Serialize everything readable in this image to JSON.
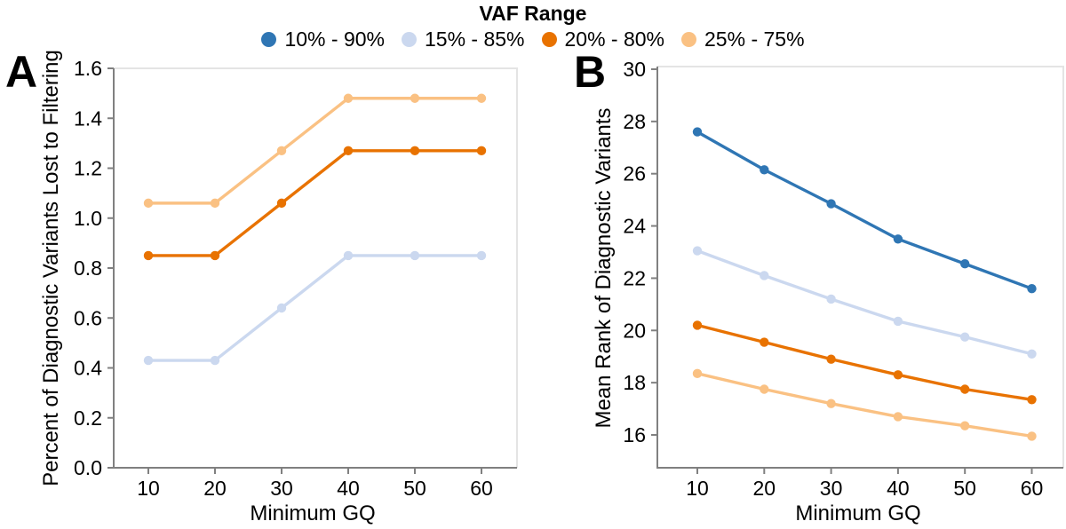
{
  "legend": {
    "title": "VAF Range",
    "position": "top",
    "items": [
      {
        "label": "10% - 90%",
        "color": "#2f76b4"
      },
      {
        "label": "15% - 85%",
        "color": "#cbd8ef"
      },
      {
        "label": "20% - 80%",
        "color": "#e87200"
      },
      {
        "label": "25% - 75%",
        "color": "#fac183"
      }
    ]
  },
  "chart_data": [
    {
      "type": "line",
      "panel_label": "A",
      "title": "",
      "xlabel": "Minimum GQ",
      "ylabel": "Percent of Diagnostic Variants Lost to Filtering",
      "x": [
        10,
        20,
        30,
        40,
        50,
        60
      ],
      "xticks": [
        10,
        20,
        30,
        40,
        50,
        60
      ],
      "xtick_labels": [
        "10",
        "20",
        "30",
        "40",
        "50",
        "60"
      ],
      "xlim": [
        4.8,
        65.3
      ],
      "yticks": [
        0.0,
        0.2,
        0.4,
        0.6,
        0.8,
        1.0,
        1.2,
        1.4,
        1.6
      ],
      "ytick_labels": [
        "0.0",
        "0.2",
        "0.4",
        "0.6",
        "0.8",
        "1.0",
        "1.2",
        "1.4",
        "1.6"
      ],
      "ylim": [
        0,
        1.6
      ],
      "grid": false,
      "series": [
        {
          "name": "15% - 85%",
          "color": "#cbd8ef",
          "values": [
            0.43,
            0.43,
            0.64,
            0.85,
            0.85,
            0.85
          ]
        },
        {
          "name": "20% - 80%",
          "color": "#e87200",
          "values": [
            0.85,
            0.85,
            1.06,
            1.27,
            1.27,
            1.27
          ]
        },
        {
          "name": "25% - 75%",
          "color": "#fac183",
          "values": [
            1.06,
            1.06,
            1.27,
            1.48,
            1.48,
            1.48
          ]
        }
      ]
    },
    {
      "type": "line",
      "panel_label": "B",
      "title": "",
      "xlabel": "Minimum GQ",
      "ylabel": "Mean Rank of Diagnostic Variants",
      "x": [
        10,
        20,
        30,
        40,
        50,
        60
      ],
      "xticks": [
        10,
        20,
        30,
        40,
        50,
        60
      ],
      "xtick_labels": [
        "10",
        "20",
        "30",
        "40",
        "50",
        "60"
      ],
      "xlim": [
        4,
        64.7
      ],
      "yticks": [
        16,
        18,
        20,
        22,
        24,
        26,
        28,
        30
      ],
      "ytick_labels": [
        "16",
        "18",
        "20",
        "22",
        "24",
        "26",
        "28",
        "30"
      ],
      "ylim": [
        14.75,
        30.1
      ],
      "grid": false,
      "series": [
        {
          "name": "10% - 90%",
          "color": "#2f76b4",
          "values": [
            27.6,
            26.15,
            24.85,
            23.5,
            22.55,
            21.6
          ]
        },
        {
          "name": "15% - 85%",
          "color": "#cbd8ef",
          "values": [
            23.05,
            22.1,
            21.2,
            20.35,
            19.75,
            19.1
          ]
        },
        {
          "name": "20% - 80%",
          "color": "#e87200",
          "values": [
            20.2,
            19.55,
            18.9,
            18.3,
            17.75,
            17.35
          ]
        },
        {
          "name": "25% - 75%",
          "color": "#fac183",
          "values": [
            18.35,
            17.75,
            17.2,
            16.7,
            16.35,
            15.95
          ]
        }
      ]
    }
  ]
}
